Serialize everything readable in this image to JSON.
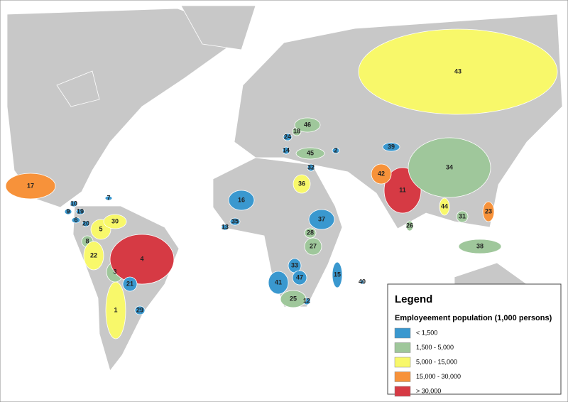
{
  "legend": {
    "title": "Legend",
    "subtitle": "Employeement population (1,000 persons)",
    "items": [
      {
        "label": "< 1,500",
        "color": "#3a98cf"
      },
      {
        "label": "1,500 - 5,000",
        "color": "#9fc79b"
      },
      {
        "label": "5,000 - 15,000",
        "color": "#f8f86a"
      },
      {
        "label": "15,000 - 30,000",
        "color": "#f7923a"
      },
      {
        "label": "> 30,000",
        "color": "#d63a44"
      }
    ]
  },
  "regions": [
    {
      "label": "1",
      "color": "#f8f86a"
    },
    {
      "label": "2",
      "color": "#3a98cf"
    },
    {
      "label": "3",
      "color": "#9fc79b"
    },
    {
      "label": "4",
      "color": "#d63a44"
    },
    {
      "label": "5",
      "color": "#f8f86a"
    },
    {
      "label": "6",
      "color": "#3a98cf"
    },
    {
      "label": "7",
      "color": "#3a98cf"
    },
    {
      "label": "8",
      "color": "#9fc79b"
    },
    {
      "label": "9",
      "color": "#3a98cf"
    },
    {
      "label": "10",
      "color": "#3a98cf"
    },
    {
      "label": "11",
      "color": "#d63a44"
    },
    {
      "label": "12",
      "color": "#3a98cf"
    },
    {
      "label": "13",
      "color": "#3a98cf"
    },
    {
      "label": "14",
      "color": "#3a98cf"
    },
    {
      "label": "15",
      "color": "#3a98cf"
    },
    {
      "label": "16",
      "color": "#3a98cf"
    },
    {
      "label": "17",
      "color": "#f7923a"
    },
    {
      "label": "18",
      "color": "#9fc79b"
    },
    {
      "label": "19",
      "color": "#3a98cf"
    },
    {
      "label": "20",
      "color": "#3a98cf"
    },
    {
      "label": "21",
      "color": "#3a98cf"
    },
    {
      "label": "22",
      "color": "#f8f86a"
    },
    {
      "label": "23",
      "color": "#f7923a"
    },
    {
      "label": "24",
      "color": "#3a98cf"
    },
    {
      "label": "25",
      "color": "#9fc79b"
    },
    {
      "label": "26",
      "color": "#9fc79b"
    },
    {
      "label": "27",
      "color": "#9fc79b"
    },
    {
      "label": "28",
      "color": "#9fc79b"
    },
    {
      "label": "29",
      "color": "#3a98cf"
    },
    {
      "label": "30",
      "color": "#f8f86a"
    },
    {
      "label": "31",
      "color": "#9fc79b"
    },
    {
      "label": "32",
      "color": "#3a98cf"
    },
    {
      "label": "33",
      "color": "#3a98cf"
    },
    {
      "label": "34",
      "color": "#9fc79b"
    },
    {
      "label": "35",
      "color": "#3a98cf"
    },
    {
      "label": "36",
      "color": "#f8f86a"
    },
    {
      "label": "37",
      "color": "#3a98cf"
    },
    {
      "label": "38",
      "color": "#9fc79b"
    },
    {
      "label": "39",
      "color": "#3a98cf"
    },
    {
      "label": "40",
      "color": "#3a98cf"
    },
    {
      "label": "41",
      "color": "#3a98cf"
    },
    {
      "label": "42",
      "color": "#f7923a"
    },
    {
      "label": "43",
      "color": "#f8f86a"
    },
    {
      "label": "44",
      "color": "#f8f86a"
    },
    {
      "label": "45",
      "color": "#9fc79b"
    },
    {
      "label": "46",
      "color": "#9fc79b"
    },
    {
      "label": "47",
      "color": "#3a98cf"
    }
  ]
}
